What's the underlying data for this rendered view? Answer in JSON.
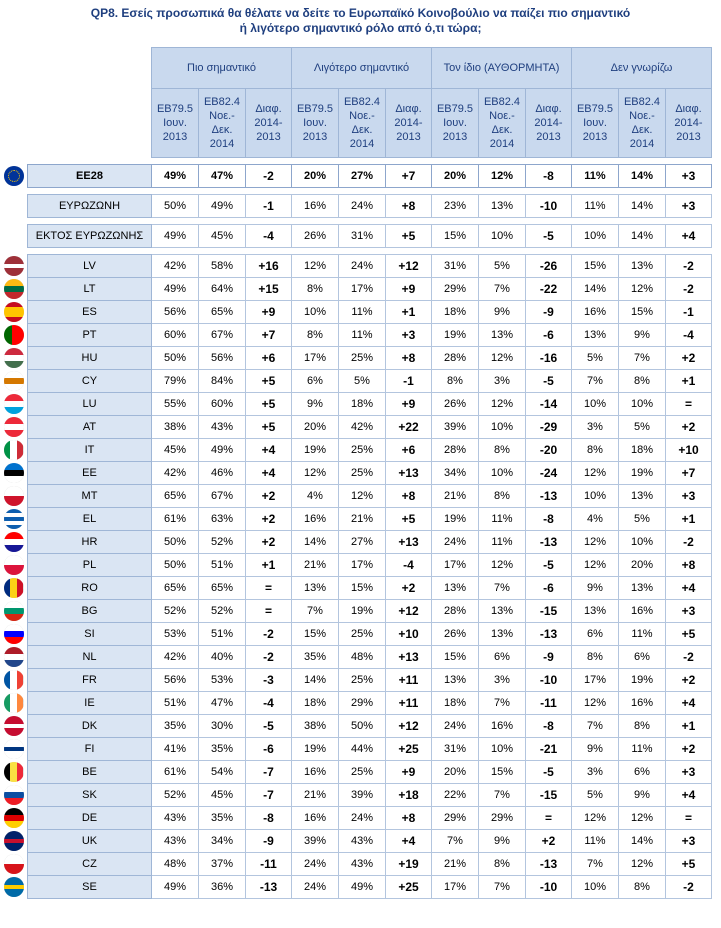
{
  "title_line1": "QP8. Εσείς προσωπικά θα θέλατε να δείτε το Ευρωπαϊκό Κοινοβούλιο να παίζει πιο σημαντικό",
  "title_line2": "ή λιγότερο σημαντικό ρόλο από ό,τι τώρα;",
  "groups": [
    "Πιο σημαντικό",
    "Λιγότερο σημαντικό",
    "Τον ίδιο (ΑΥΘΟΡΜΗΤΑ)",
    "Δεν γνωρίζω"
  ],
  "subheaders": [
    "EB79.5 Ιουν. 2013",
    "EB82.4 Νοε.- Δεκ. 2014",
    "Διαφ. 2014- 2013"
  ],
  "chart_data": {
    "type": "table",
    "rows": [
      {
        "label": "EE28",
        "flag": "eu",
        "values": [
          "49%",
          "47%",
          "-2",
          "20%",
          "27%",
          "+7",
          "20%",
          "12%",
          "-8",
          "11%",
          "14%",
          "+3"
        ]
      },
      {
        "label": "ΕΥΡΩΖΩΝΗ",
        "flag": "",
        "values": [
          "50%",
          "49%",
          "-1",
          "16%",
          "24%",
          "+8",
          "23%",
          "13%",
          "-10",
          "11%",
          "14%",
          "+3"
        ]
      },
      {
        "label": "ΕΚΤΟΣ ΕΥΡΩΖΩΝΗΣ",
        "flag": "",
        "values": [
          "49%",
          "45%",
          "-4",
          "26%",
          "31%",
          "+5",
          "15%",
          "10%",
          "-5",
          "10%",
          "14%",
          "+4"
        ]
      },
      {
        "label": "LV",
        "flag": "lv",
        "values": [
          "42%",
          "58%",
          "+16",
          "12%",
          "24%",
          "+12",
          "31%",
          "5%",
          "-26",
          "15%",
          "13%",
          "-2"
        ]
      },
      {
        "label": "LT",
        "flag": "lt",
        "values": [
          "49%",
          "64%",
          "+15",
          "8%",
          "17%",
          "+9",
          "29%",
          "7%",
          "-22",
          "14%",
          "12%",
          "-2"
        ]
      },
      {
        "label": "ES",
        "flag": "es",
        "values": [
          "56%",
          "65%",
          "+9",
          "10%",
          "11%",
          "+1",
          "18%",
          "9%",
          "-9",
          "16%",
          "15%",
          "-1"
        ]
      },
      {
        "label": "PT",
        "flag": "pt",
        "values": [
          "60%",
          "67%",
          "+7",
          "8%",
          "11%",
          "+3",
          "19%",
          "13%",
          "-6",
          "13%",
          "9%",
          "-4"
        ]
      },
      {
        "label": "HU",
        "flag": "hu",
        "values": [
          "50%",
          "56%",
          "+6",
          "17%",
          "25%",
          "+8",
          "28%",
          "12%",
          "-16",
          "5%",
          "7%",
          "+2"
        ]
      },
      {
        "label": "CY",
        "flag": "cy",
        "values": [
          "79%",
          "84%",
          "+5",
          "6%",
          "5%",
          "-1",
          "8%",
          "3%",
          "-5",
          "7%",
          "8%",
          "+1"
        ]
      },
      {
        "label": "LU",
        "flag": "lu",
        "values": [
          "55%",
          "60%",
          "+5",
          "9%",
          "18%",
          "+9",
          "26%",
          "12%",
          "-14",
          "10%",
          "10%",
          "="
        ]
      },
      {
        "label": "AT",
        "flag": "at",
        "values": [
          "38%",
          "43%",
          "+5",
          "20%",
          "42%",
          "+22",
          "39%",
          "10%",
          "-29",
          "3%",
          "5%",
          "+2"
        ]
      },
      {
        "label": "IT",
        "flag": "it",
        "values": [
          "45%",
          "49%",
          "+4",
          "19%",
          "25%",
          "+6",
          "28%",
          "8%",
          "-20",
          "8%",
          "18%",
          "+10"
        ]
      },
      {
        "label": "EE",
        "flag": "ee",
        "values": [
          "42%",
          "46%",
          "+4",
          "12%",
          "25%",
          "+13",
          "34%",
          "10%",
          "-24",
          "12%",
          "19%",
          "+7"
        ]
      },
      {
        "label": "MT",
        "flag": "mt",
        "values": [
          "65%",
          "67%",
          "+2",
          "4%",
          "12%",
          "+8",
          "21%",
          "8%",
          "-13",
          "10%",
          "13%",
          "+3"
        ]
      },
      {
        "label": "EL",
        "flag": "el",
        "values": [
          "61%",
          "63%",
          "+2",
          "16%",
          "21%",
          "+5",
          "19%",
          "11%",
          "-8",
          "4%",
          "5%",
          "+1"
        ]
      },
      {
        "label": "HR",
        "flag": "hr",
        "values": [
          "50%",
          "52%",
          "+2",
          "14%",
          "27%",
          "+13",
          "24%",
          "11%",
          "-13",
          "12%",
          "10%",
          "-2"
        ]
      },
      {
        "label": "PL",
        "flag": "pl",
        "values": [
          "50%",
          "51%",
          "+1",
          "21%",
          "17%",
          "-4",
          "17%",
          "12%",
          "-5",
          "12%",
          "20%",
          "+8"
        ]
      },
      {
        "label": "RO",
        "flag": "ro",
        "values": [
          "65%",
          "65%",
          "=",
          "13%",
          "15%",
          "+2",
          "13%",
          "7%",
          "-6",
          "9%",
          "13%",
          "+4"
        ]
      },
      {
        "label": "BG",
        "flag": "bg",
        "values": [
          "52%",
          "52%",
          "=",
          "7%",
          "19%",
          "+12",
          "28%",
          "13%",
          "-15",
          "13%",
          "16%",
          "+3"
        ]
      },
      {
        "label": "SI",
        "flag": "si",
        "values": [
          "53%",
          "51%",
          "-2",
          "15%",
          "25%",
          "+10",
          "26%",
          "13%",
          "-13",
          "6%",
          "11%",
          "+5"
        ]
      },
      {
        "label": "NL",
        "flag": "nl",
        "values": [
          "42%",
          "40%",
          "-2",
          "35%",
          "48%",
          "+13",
          "15%",
          "6%",
          "-9",
          "8%",
          "6%",
          "-2"
        ]
      },
      {
        "label": "FR",
        "flag": "fr",
        "values": [
          "56%",
          "53%",
          "-3",
          "14%",
          "25%",
          "+11",
          "13%",
          "3%",
          "-10",
          "17%",
          "19%",
          "+2"
        ]
      },
      {
        "label": "IE",
        "flag": "ie",
        "values": [
          "51%",
          "47%",
          "-4",
          "18%",
          "29%",
          "+11",
          "18%",
          "7%",
          "-11",
          "12%",
          "16%",
          "+4"
        ]
      },
      {
        "label": "DK",
        "flag": "dk",
        "values": [
          "35%",
          "30%",
          "-5",
          "38%",
          "50%",
          "+12",
          "24%",
          "16%",
          "-8",
          "7%",
          "8%",
          "+1"
        ]
      },
      {
        "label": "FI",
        "flag": "fi",
        "values": [
          "41%",
          "35%",
          "-6",
          "19%",
          "44%",
          "+25",
          "31%",
          "10%",
          "-21",
          "9%",
          "11%",
          "+2"
        ]
      },
      {
        "label": "BE",
        "flag": "be",
        "values": [
          "61%",
          "54%",
          "-7",
          "16%",
          "25%",
          "+9",
          "20%",
          "15%",
          "-5",
          "3%",
          "6%",
          "+3"
        ]
      },
      {
        "label": "SK",
        "flag": "sk",
        "values": [
          "52%",
          "45%",
          "-7",
          "21%",
          "39%",
          "+18",
          "22%",
          "7%",
          "-15",
          "5%",
          "9%",
          "+4"
        ]
      },
      {
        "label": "DE",
        "flag": "de",
        "values": [
          "43%",
          "35%",
          "-8",
          "16%",
          "24%",
          "+8",
          "29%",
          "29%",
          "=",
          "12%",
          "12%",
          "="
        ]
      },
      {
        "label": "UK",
        "flag": "uk",
        "values": [
          "43%",
          "34%",
          "-9",
          "39%",
          "43%",
          "+4",
          "7%",
          "9%",
          "+2",
          "11%",
          "14%",
          "+3"
        ]
      },
      {
        "label": "CZ",
        "flag": "cz",
        "values": [
          "48%",
          "37%",
          "-11",
          "24%",
          "43%",
          "+19",
          "21%",
          "8%",
          "-13",
          "7%",
          "12%",
          "+5"
        ]
      },
      {
        "label": "SE",
        "flag": "se",
        "values": [
          "49%",
          "36%",
          "-13",
          "24%",
          "49%",
          "+25",
          "17%",
          "7%",
          "-10",
          "10%",
          "8%",
          "-2"
        ]
      }
    ]
  },
  "flag_colors": {
    "eu": [
      [
        "#003399",
        1
      ]
    ],
    "lv": [
      [
        "#9e3039",
        0.4
      ],
      [
        "#ffffff",
        0.2
      ],
      [
        "#9e3039",
        0.4
      ]
    ],
    "lt": [
      [
        "#fdb913",
        0.333
      ],
      [
        "#006a44",
        0.334
      ],
      [
        "#c1272d",
        0.333
      ]
    ],
    "es": [
      [
        "#c60b1e",
        0.25
      ],
      [
        "#ffc400",
        0.5
      ],
      [
        "#c60b1e",
        0.25
      ]
    ],
    "pt": [
      [
        "#006600",
        0.4
      ],
      [
        "#ff0000",
        0.6
      ]
    ],
    "hu": [
      [
        "#cd2a3e",
        0.333
      ],
      [
        "#ffffff",
        0.334
      ],
      [
        "#436f4d",
        0.333
      ]
    ],
    "cy": [
      [
        "#ffffff",
        0.35
      ],
      [
        "#d57800",
        0.3
      ],
      [
        "#ffffff",
        0.35
      ]
    ],
    "lu": [
      [
        "#ed2939",
        0.333
      ],
      [
        "#ffffff",
        0.334
      ],
      [
        "#00a1de",
        0.333
      ]
    ],
    "at": [
      [
        "#ed2939",
        0.333
      ],
      [
        "#ffffff",
        0.334
      ],
      [
        "#ed2939",
        0.333
      ]
    ],
    "it": [
      [
        "#009246",
        0.333
      ],
      [
        "#ffffff",
        0.334
      ],
      [
        "#ce2b37",
        0.333
      ]
    ],
    "ee": [
      [
        "#0072ce",
        0.333
      ],
      [
        "#000000",
        0.334
      ],
      [
        "#ffffff",
        0.333
      ]
    ],
    "mt": [
      [
        "#ffffff",
        0.5
      ],
      [
        "#cf142b",
        0.5
      ]
    ],
    "el": [
      [
        "#0d5eaf",
        0.2
      ],
      [
        "#ffffff",
        0.2
      ],
      [
        "#0d5eaf",
        0.2
      ],
      [
        "#ffffff",
        0.2
      ],
      [
        "#0d5eaf",
        0.2
      ]
    ],
    "hr": [
      [
        "#ff0000",
        0.333
      ],
      [
        "#ffffff",
        0.334
      ],
      [
        "#171796",
        0.333
      ]
    ],
    "pl": [
      [
        "#ffffff",
        0.5
      ],
      [
        "#dc143c",
        0.5
      ]
    ],
    "ro": [
      [
        "#002b7f",
        0.333
      ],
      [
        "#fcd116",
        0.334
      ],
      [
        "#ce1126",
        0.333
      ]
    ],
    "bg": [
      [
        "#ffffff",
        0.333
      ],
      [
        "#00966e",
        0.334
      ],
      [
        "#d62612",
        0.333
      ]
    ],
    "si": [
      [
        "#ffffff",
        0.333
      ],
      [
        "#0000ff",
        0.334
      ],
      [
        "#ff0000",
        0.333
      ]
    ],
    "nl": [
      [
        "#ae1c28",
        0.333
      ],
      [
        "#ffffff",
        0.334
      ],
      [
        "#21468b",
        0.333
      ]
    ],
    "fr": [
      [
        "#0055a4",
        0.333
      ],
      [
        "#ffffff",
        0.334
      ],
      [
        "#ef4135",
        0.333
      ]
    ],
    "ie": [
      [
        "#169b62",
        0.333
      ],
      [
        "#ffffff",
        0.334
      ],
      [
        "#ff883e",
        0.333
      ]
    ],
    "dk": [
      [
        "#c60c30",
        0.42
      ],
      [
        "#ffffff",
        0.16
      ],
      [
        "#c60c30",
        0.42
      ]
    ],
    "fi": [
      [
        "#ffffff",
        0.4
      ],
      [
        "#003580",
        0.2
      ],
      [
        "#ffffff",
        0.4
      ]
    ],
    "be": [
      [
        "#000000",
        0.333
      ],
      [
        "#fae042",
        0.334
      ],
      [
        "#ed2939",
        0.333
      ]
    ],
    "sk": [
      [
        "#ffffff",
        0.333
      ],
      [
        "#0b4ea2",
        0.334
      ],
      [
        "#ee1c25",
        0.333
      ]
    ],
    "de": [
      [
        "#000000",
        0.333
      ],
      [
        "#dd0000",
        0.334
      ],
      [
        "#ffce00",
        0.333
      ]
    ],
    "uk": [
      [
        "#012169",
        0.4
      ],
      [
        "#c8102e",
        0.2
      ],
      [
        "#012169",
        0.4
      ]
    ],
    "cz": [
      [
        "#ffffff",
        0.5
      ],
      [
        "#d7141a",
        0.5
      ]
    ],
    "se": [
      [
        "#006aa7",
        0.4
      ],
      [
        "#fecc00",
        0.2
      ],
      [
        "#006aa7",
        0.4
      ]
    ]
  },
  "flag_vertical": [
    "pt",
    "it",
    "fr",
    "ie",
    "be",
    "ro"
  ]
}
